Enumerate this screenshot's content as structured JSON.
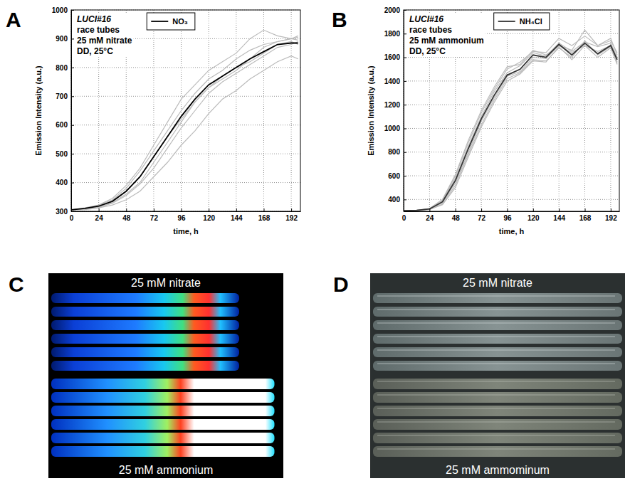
{
  "chart_data": [
    {
      "type": "line",
      "panel": "A",
      "annotations": [
        "LUCI#16",
        "race tubes",
        "25 mM nitrate",
        "DD, 25°C"
      ],
      "x_label": "time, h",
      "y_label": "Emission Intensity (a.u.)",
      "x": [
        0,
        12,
        24,
        36,
        48,
        60,
        72,
        84,
        96,
        108,
        120,
        132,
        144,
        156,
        168,
        180,
        192,
        198
      ],
      "xlim": [
        0,
        200
      ],
      "xticks": [
        0,
        24,
        48,
        72,
        96,
        120,
        144,
        168,
        192
      ],
      "ylim": [
        300,
        1000
      ],
      "yticks": [
        300,
        400,
        500,
        600,
        700,
        800,
        900,
        1000
      ],
      "grid": true,
      "legend": "top",
      "series": [
        {
          "color": "#bbbbbb",
          "values": [
            305,
            312,
            322,
            345,
            390,
            450,
            530,
            610,
            690,
            740,
            790,
            820,
            850,
            900,
            930,
            910,
            900,
            910
          ]
        },
        {
          "color": "#bbbbbb",
          "values": [
            305,
            310,
            320,
            340,
            380,
            440,
            510,
            580,
            650,
            710,
            760,
            790,
            830,
            860,
            880,
            890,
            900,
            905
          ]
        },
        {
          "color": "#bbbbbb",
          "values": [
            305,
            310,
            318,
            335,
            370,
            420,
            490,
            560,
            620,
            680,
            730,
            770,
            800,
            820,
            850,
            880,
            890,
            880
          ]
        },
        {
          "color": "#bbbbbb",
          "values": [
            305,
            308,
            315,
            330,
            360,
            400,
            470,
            540,
            610,
            680,
            730,
            760,
            790,
            830,
            870,
            890,
            900,
            895
          ]
        },
        {
          "color": "#bbbbbb",
          "values": [
            305,
            308,
            314,
            328,
            355,
            395,
            450,
            520,
            590,
            650,
            710,
            750,
            780,
            810,
            840,
            870,
            880,
            890
          ]
        },
        {
          "color": "#bbbbbb",
          "values": [
            305,
            306,
            312,
            322,
            340,
            370,
            420,
            470,
            530,
            580,
            640,
            690,
            720,
            760,
            790,
            820,
            840,
            830
          ]
        },
        {
          "name": "NO₃",
          "color": "#000000",
          "values": [
            305,
            310,
            318,
            335,
            370,
            420,
            490,
            560,
            630,
            690,
            740,
            770,
            800,
            830,
            855,
            880,
            885,
            885
          ]
        }
      ]
    },
    {
      "type": "line",
      "panel": "B",
      "annotations": [
        "LUCI#16",
        "race tubes",
        "25 mM ammonium",
        "DD, 25°C"
      ],
      "x_label": "time, h",
      "y_label": "Emission Intensity (a.u.)",
      "x": [
        0,
        12,
        24,
        36,
        48,
        60,
        72,
        84,
        96,
        108,
        120,
        132,
        144,
        156,
        168,
        180,
        192,
        198
      ],
      "xlim": [
        0,
        200
      ],
      "xticks": [
        0,
        24,
        48,
        72,
        96,
        120,
        144,
        168,
        192
      ],
      "ylim": [
        300,
        2000
      ],
      "yticks": [
        400,
        600,
        800,
        1000,
        1200,
        1400,
        1600,
        1800,
        2000
      ],
      "grid": true,
      "legend": "top",
      "series": [
        {
          "color": "#bbbbbb",
          "values": [
            305,
            308,
            322,
            390,
            600,
            880,
            1130,
            1330,
            1500,
            1560,
            1650,
            1640,
            1760,
            1700,
            1780,
            1700,
            1740,
            1640
          ]
        },
        {
          "color": "#bbbbbb",
          "values": [
            305,
            308,
            320,
            385,
            580,
            850,
            1100,
            1310,
            1470,
            1530,
            1640,
            1610,
            1720,
            1650,
            1730,
            1690,
            1720,
            1600
          ]
        },
        {
          "color": "#bbbbbb",
          "values": [
            305,
            307,
            318,
            370,
            540,
            800,
            1060,
            1260,
            1440,
            1480,
            1600,
            1590,
            1700,
            1640,
            1700,
            1650,
            1700,
            1560
          ]
        },
        {
          "color": "#bbbbbb",
          "values": [
            305,
            308,
            316,
            360,
            520,
            780,
            1030,
            1240,
            1420,
            1470,
            1580,
            1570,
            1680,
            1600,
            1740,
            1620,
            1690,
            1550
          ]
        },
        {
          "color": "#bbbbbb",
          "values": [
            305,
            309,
            324,
            400,
            610,
            900,
            1150,
            1350,
            1520,
            1540,
            1660,
            1620,
            1700,
            1660,
            1830,
            1700,
            1760,
            1620
          ]
        },
        {
          "color": "#bbbbbb",
          "values": [
            305,
            307,
            315,
            355,
            500,
            760,
            1010,
            1220,
            1400,
            1460,
            1570,
            1560,
            1690,
            1580,
            1700,
            1600,
            1680,
            1540
          ]
        },
        {
          "name": "NH₄Cl",
          "color": "#333333",
          "values": [
            305,
            308,
            320,
            380,
            560,
            830,
            1080,
            1280,
            1450,
            1500,
            1620,
            1600,
            1710,
            1620,
            1720,
            1630,
            1700,
            1580
          ]
        }
      ]
    }
  ],
  "images": [
    {
      "panel": "C",
      "top_text": "25 mM nitrate",
      "bottom_text": "25 mM ammonium"
    },
    {
      "panel": "D",
      "top_text": "25 mM nitrate",
      "bottom_text": "25 mM ammominum"
    }
  ]
}
